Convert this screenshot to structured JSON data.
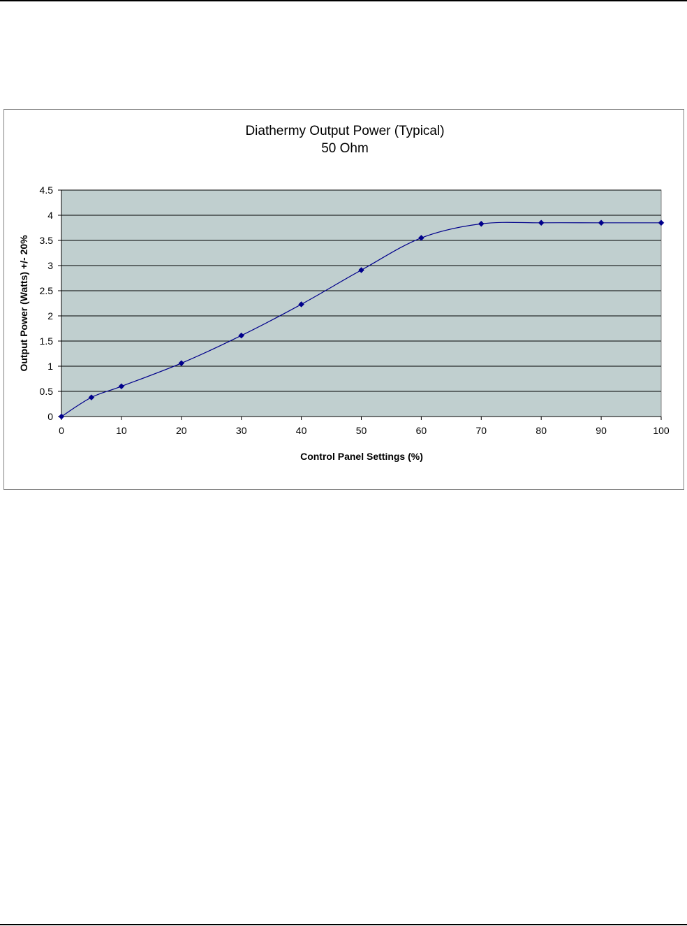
{
  "chart_data": {
    "type": "line",
    "title": "Diathermy Output Power (Typical)",
    "subtitle": "50 Ohm",
    "xlabel": "Control Panel Settings (%)",
    "ylabel": "Output Power (Watts) +/- 20%",
    "xlim": [
      0,
      100
    ],
    "ylim": [
      0,
      4.5
    ],
    "xticks": [
      "0",
      "10",
      "20",
      "30",
      "40",
      "50",
      "60",
      "70",
      "80",
      "90",
      "100"
    ],
    "yticks": [
      "0",
      "0.5",
      "1",
      "1.5",
      "2",
      "2.5",
      "3",
      "3.5",
      "4",
      "4.5"
    ],
    "grid": "horizontal",
    "series": [
      {
        "x": [
          0,
          5,
          10,
          20,
          30,
          40,
          50,
          60,
          70,
          80,
          90,
          100
        ],
        "y": [
          0,
          0.38,
          0.6,
          1.06,
          1.61,
          2.23,
          2.91,
          3.55,
          3.83,
          3.85,
          3.85,
          3.85
        ],
        "color": "#00008B"
      }
    ],
    "plot_background": "#C0CFCF",
    "marker": "diamond"
  }
}
